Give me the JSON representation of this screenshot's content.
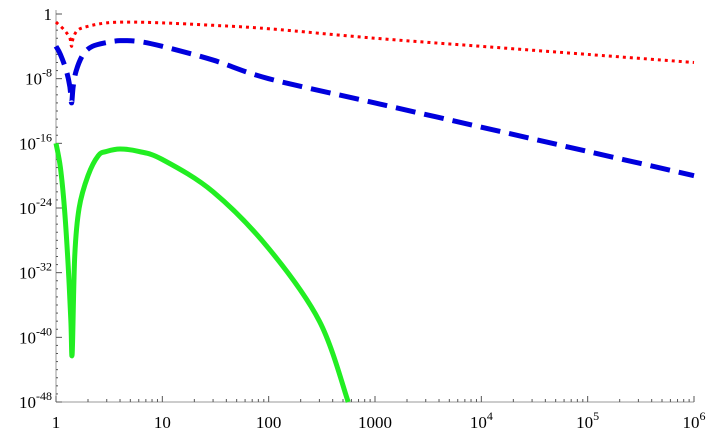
{
  "chart_data": {
    "type": "line",
    "title": "",
    "xlabel": "",
    "ylabel": "",
    "x_scale": "log",
    "y_scale": "log",
    "xlim": [
      1,
      1000000
    ],
    "ylim": [
      1e-48,
      1
    ],
    "grid": false,
    "x_ticks": [
      {
        "value": 1,
        "base": "1",
        "exp": ""
      },
      {
        "value": 10,
        "base": "10",
        "exp": ""
      },
      {
        "value": 100,
        "base": "100",
        "exp": ""
      },
      {
        "value": 1000,
        "base": "1000",
        "exp": ""
      },
      {
        "value": 10000,
        "base": "10",
        "exp": "4"
      },
      {
        "value": 100000,
        "base": "10",
        "exp": "5"
      },
      {
        "value": 1000000,
        "base": "10",
        "exp": "6"
      }
    ],
    "y_ticks": [
      {
        "value": 1,
        "base": "1",
        "exp": ""
      },
      {
        "value": 1e-08,
        "base": "10",
        "exp": "-8"
      },
      {
        "value": 1e-16,
        "base": "10",
        "exp": "-16"
      },
      {
        "value": 1e-24,
        "base": "10",
        "exp": "-24"
      },
      {
        "value": 1e-32,
        "base": "10",
        "exp": "-32"
      },
      {
        "value": 1e-40,
        "base": "10",
        "exp": "-40"
      },
      {
        "value": 1e-48,
        "base": "10",
        "exp": "-48"
      }
    ],
    "series": [
      {
        "color": "#ff0000",
        "style": "dotted",
        "x": [
          1,
          1.2,
          1.35,
          1.4,
          1.45,
          1.6,
          2,
          3,
          5,
          10,
          30,
          100,
          1000,
          10000,
          100000,
          1000000
        ],
        "y": [
          0.1,
          0.01,
          0.001,
          0.0001,
          0.001,
          0.01,
          0.03,
          0.08,
          0.1,
          0.08,
          0.04,
          0.015,
          0.001,
          0.0001,
          1e-05,
          1e-06
        ]
      },
      {
        "color": "#0000dd",
        "style": "dashed",
        "x": [
          1,
          1.1,
          1.25,
          1.35,
          1.4,
          1.45,
          1.55,
          1.8,
          2.2,
          3,
          4,
          6,
          10,
          30,
          100,
          1000,
          10000,
          100000,
          1000000
        ],
        "y": [
          0.0001,
          1e-05,
          1e-07,
          1e-09,
          1e-11,
          1e-09,
          1e-07,
          1e-05,
          0.0001,
          0.0003,
          0.0005,
          0.0004,
          0.0001,
          2e-06,
          1e-08,
          1e-11,
          1e-14,
          1e-17,
          1e-20
        ]
      },
      {
        "color": "#22ee22",
        "style": "solid",
        "x": [
          1,
          1.1,
          1.2,
          1.3,
          1.38,
          1.42,
          1.5,
          1.65,
          2,
          2.5,
          3,
          4,
          6,
          10,
          30,
          100,
          300,
          560
        ],
        "y": [
          1e-16,
          1e-19,
          1e-24,
          1e-31,
          1e-38,
          1e-42,
          1e-30,
          1e-24,
          1e-20,
          3e-18,
          1e-17,
          2e-17,
          1e-17,
          1e-18,
          1e-22,
          1e-29,
          1e-38,
          1e-48
        ]
      }
    ]
  }
}
